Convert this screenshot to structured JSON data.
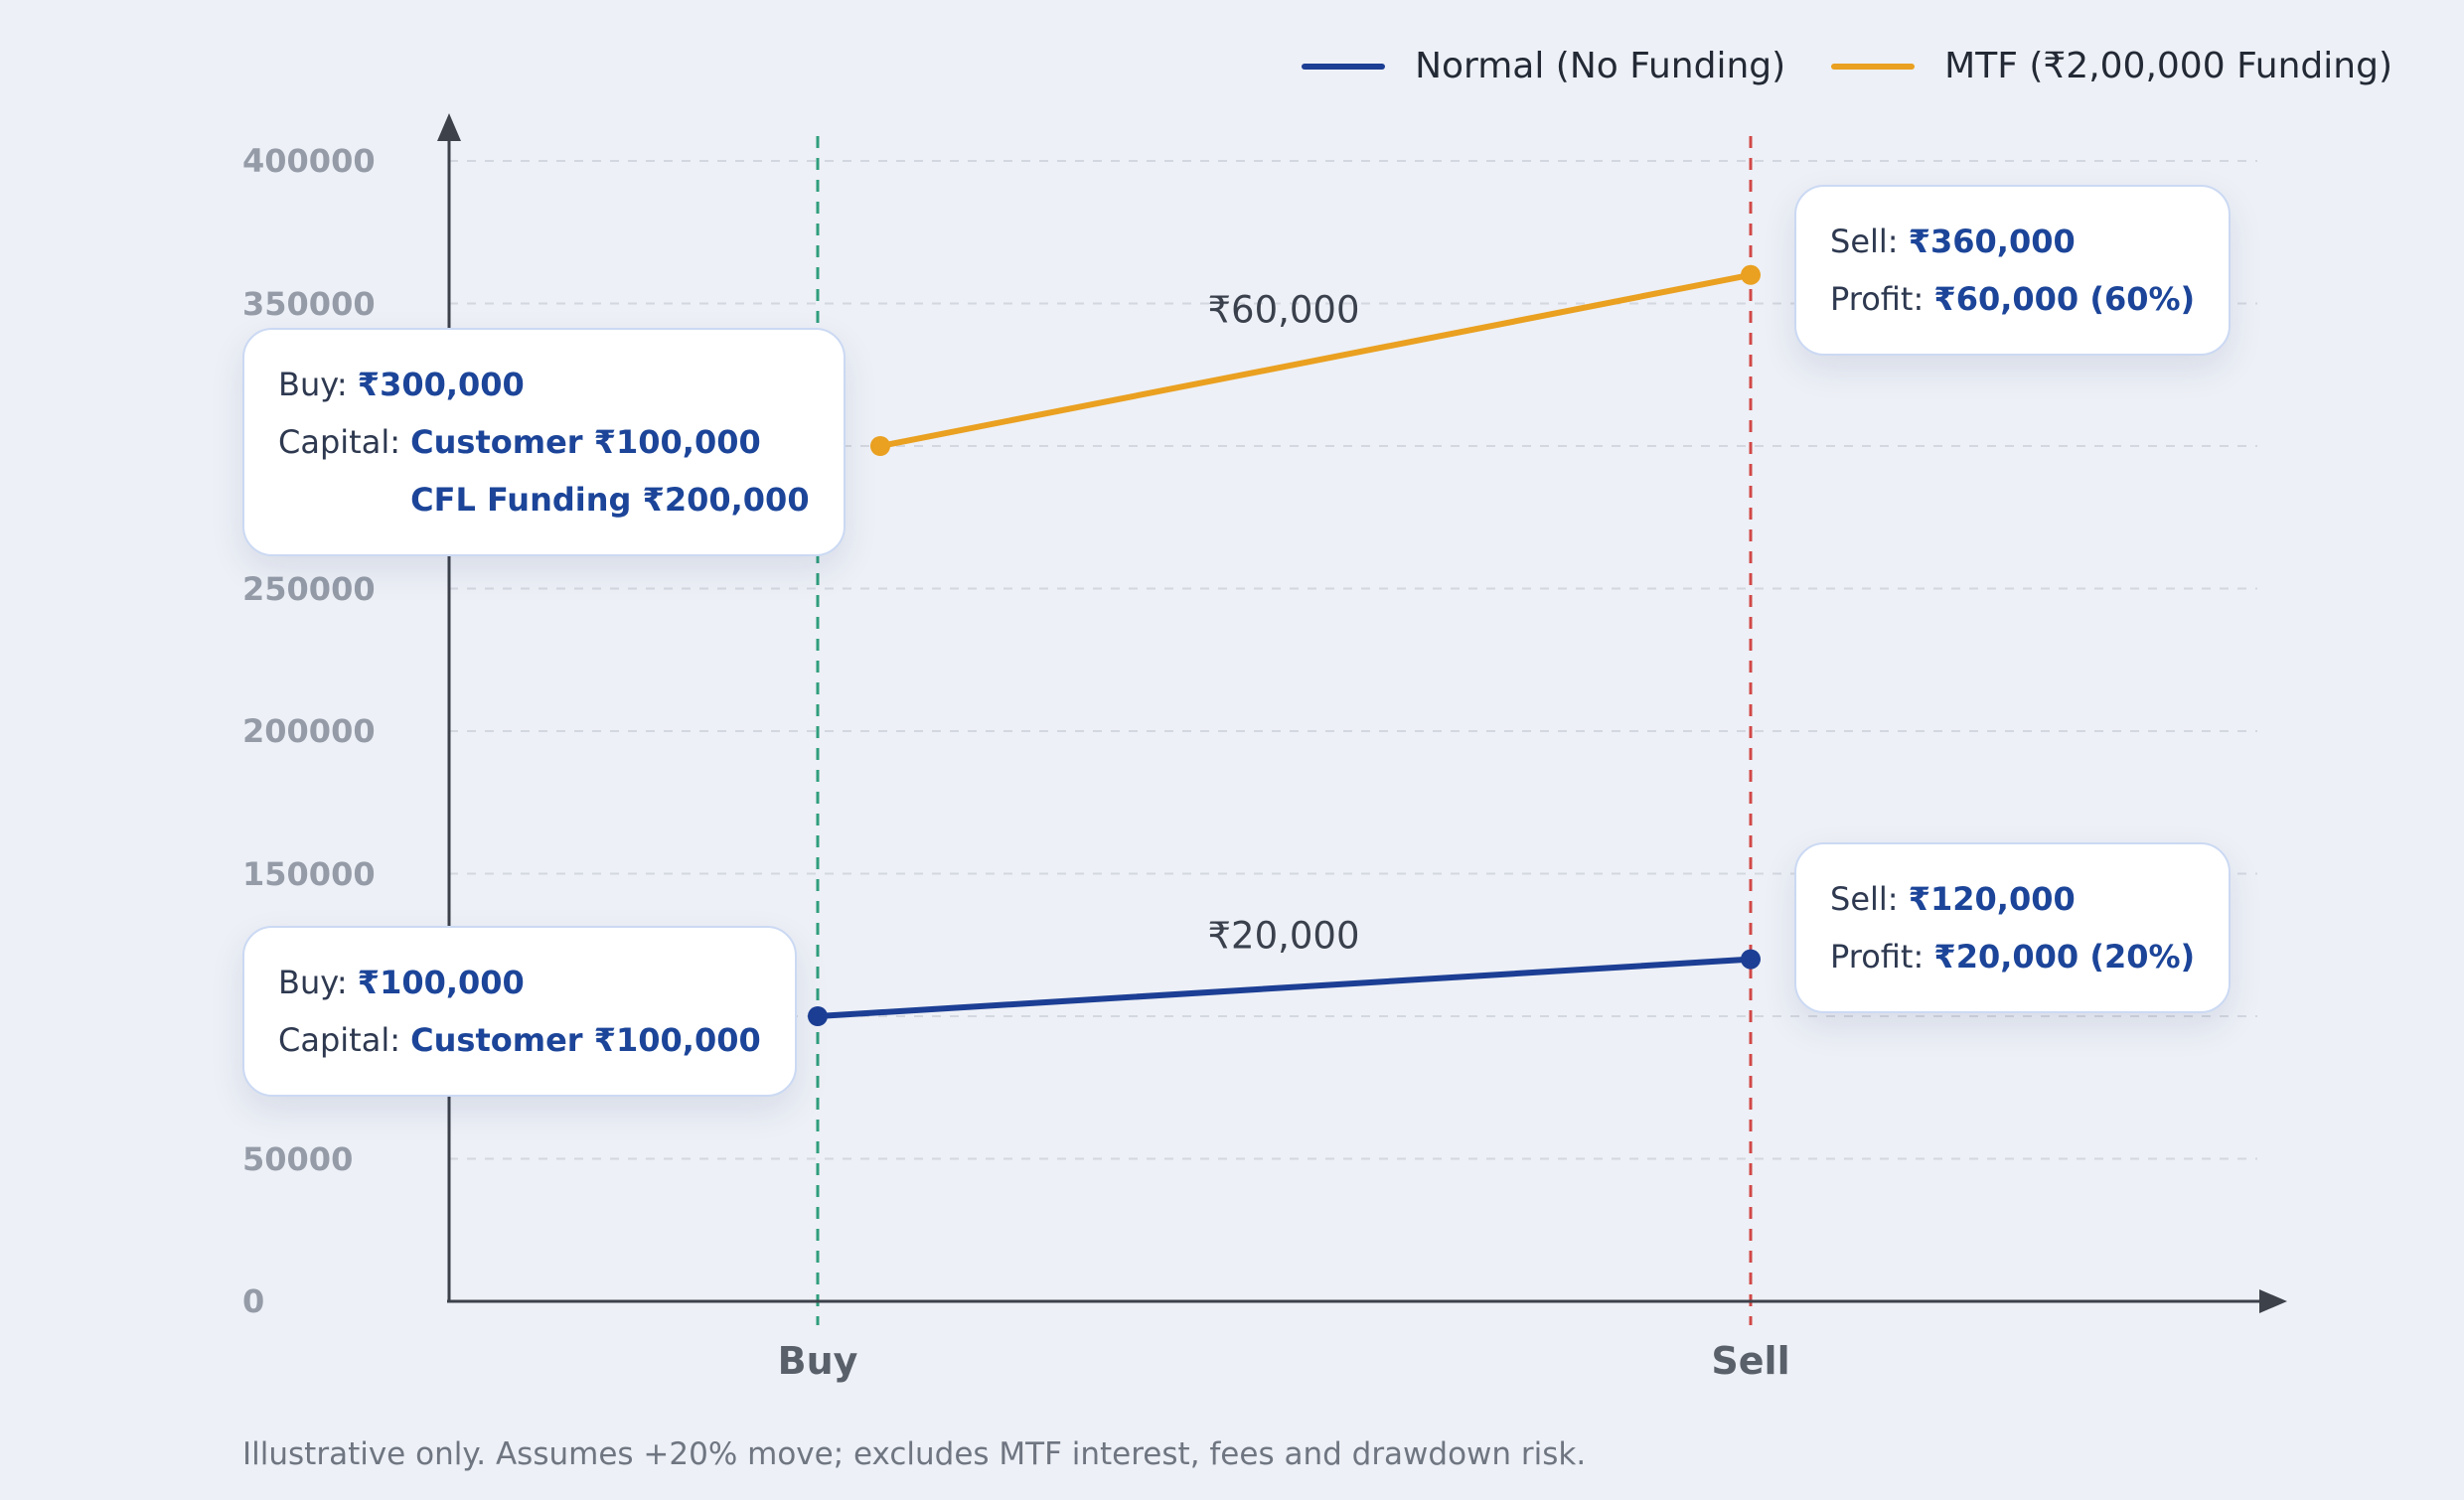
{
  "page": {
    "background_color": "#edf0f6",
    "footer_note": "Illustrative only. Assumes +20% move; excludes MTF interest, fees and drawdown risk."
  },
  "colors": {
    "normal_line": "#1c3e94",
    "mtf_line": "#eaa020",
    "buy_guide": "#2f9e7c",
    "sell_guide": "#d14747",
    "value_text": "#1c4599",
    "axis": "#3c414a",
    "gridline": "#d3d7df",
    "tooltip_border": "#cbd9f3"
  },
  "legend": {
    "items": [
      {
        "label": "Normal (No Funding)",
        "color": "#1c3e94"
      },
      {
        "label": "MTF (₹2,00,000 Funding)",
        "color": "#eaa020"
      }
    ]
  },
  "chart_data": {
    "type": "line",
    "x_categories": [
      "Buy",
      "Sell"
    ],
    "series": [
      {
        "name": "Normal (No Funding)",
        "color": "#1c3e94",
        "values": [
          100000,
          120000
        ],
        "gain_annotation": "₹20,000"
      },
      {
        "name": "MTF (₹2,00,000 Funding)",
        "color": "#eaa020",
        "values": [
          300000,
          360000
        ],
        "gain_annotation": "₹60,000"
      }
    ],
    "ylim": [
      0,
      400000
    ],
    "yticks": [
      0,
      50000,
      100000,
      150000,
      200000,
      250000,
      300000,
      350000,
      400000
    ],
    "grid": true,
    "legend_position": "top-right",
    "buy_guide_color": "#2f9e7c",
    "sell_guide_color": "#d14747",
    "title": "",
    "xlabel": "",
    "ylabel": ""
  },
  "tooltips": {
    "mtf_buy": {
      "row1_label": "Buy: ",
      "row1_value": "₹300,000",
      "row2_label": "Capital: ",
      "row2_value": "Customer ₹100,000",
      "row3_value": "CFL Funding ₹200,000"
    },
    "mtf_sell": {
      "row1_label": "Sell: ",
      "row1_value": "₹360,000",
      "row2_label": "Profit: ",
      "row2_value": "₹60,000 (60%)"
    },
    "normal_buy": {
      "row1_label": "Buy: ",
      "row1_value": "₹100,000",
      "row2_label": "Capital: ",
      "row2_value": "Customer ₹100,000"
    },
    "normal_sell": {
      "row1_label": "Sell: ",
      "row1_value": "₹120,000",
      "row2_label": "Profit: ",
      "row2_value": "₹20,000 (20%)"
    }
  }
}
